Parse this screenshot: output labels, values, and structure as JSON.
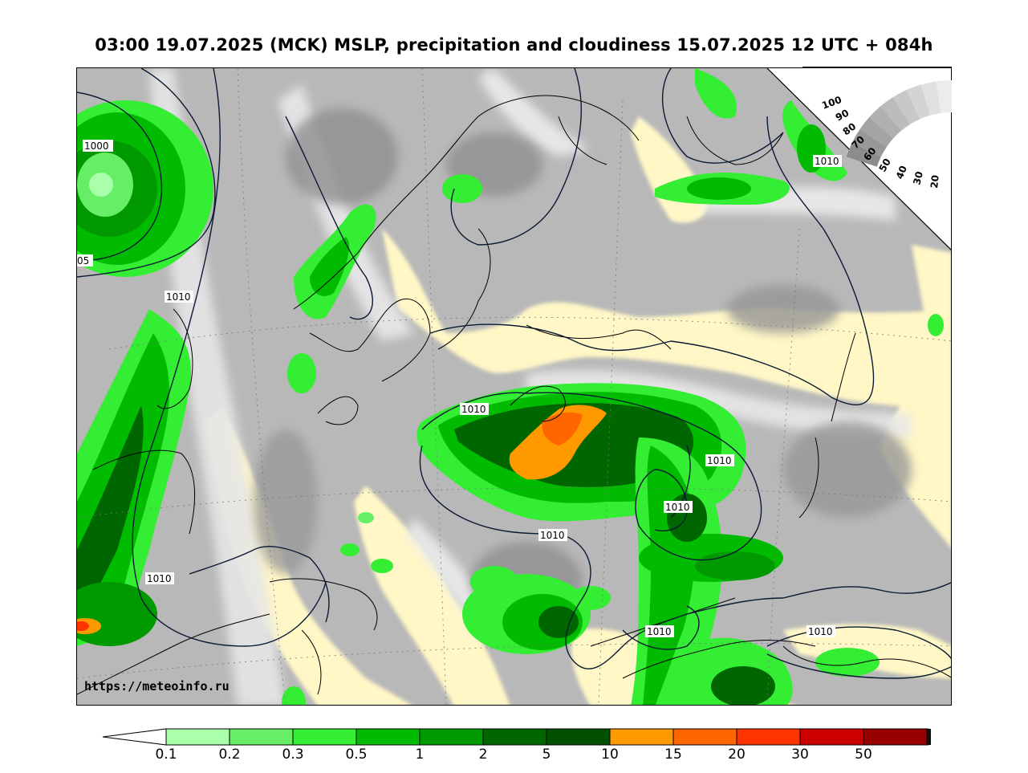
{
  "title": "03:00 19.07.2025 (MCK) MSLP, precipitation and cloudiness 15.07.2025 12 UTC + 084h",
  "source_url": "https://meteoinfo.ru",
  "isobar_labels": [
    "1000",
    "05",
    "1010",
    "1010",
    "1010",
    "1010",
    "1010",
    "1010",
    "1010",
    "1010",
    "1010"
  ],
  "cloudiness_scale": {
    "labels": [
      "100",
      "90",
      "80",
      "70",
      "60",
      "50",
      "40",
      "30",
      "20"
    ]
  },
  "precip_colorbar": {
    "labels": [
      "0.1",
      "0.2",
      "0.3",
      "0.5",
      "1",
      "2",
      "5",
      "10",
      "15",
      "20",
      "30",
      "50"
    ],
    "colors": [
      "#aaffaa",
      "#66ee66",
      "#33ee33",
      "#00bb00",
      "#009900",
      "#006600",
      "#005000",
      "#ff9900",
      "#ff6600",
      "#ff3300",
      "#cc0000",
      "#990000",
      "#111111"
    ]
  },
  "colors": {
    "land_clear": "#fff8c8",
    "cloud_dark": "#9a9a9a",
    "cloud_mid": "#bdbdbd",
    "cloud_light": "#e2e2e2",
    "isobar": "#0a1a33"
  }
}
